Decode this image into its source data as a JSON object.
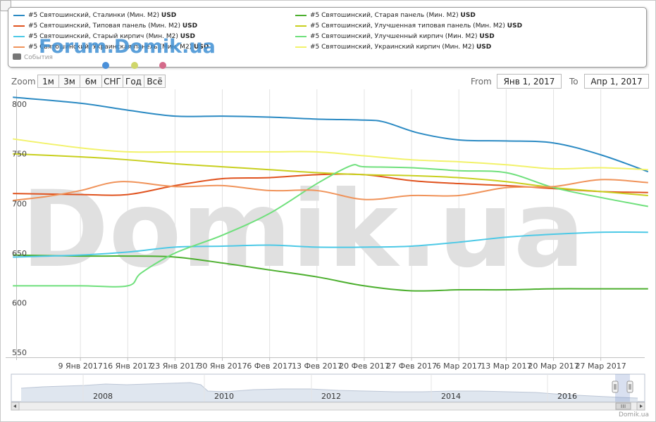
{
  "legend": {
    "items": [
      {
        "label": "#5 Святошинский, Сталинки (Мин. М2)",
        "currency": "USD",
        "color": "#2b8ac3"
      },
      {
        "label": "#5 Святошинский, Старая панель (Мин. М2)",
        "currency": "USD",
        "color": "#4caf2e"
      },
      {
        "label": "#5 Святошинский, Типовая панель (Мин. М2)",
        "currency": "USD",
        "color": "#e0531f"
      },
      {
        "label": "#5 Святошинский, Улучшенная типовая панель (Мин. М2)",
        "currency": "USD",
        "color": "#c8cf1e"
      },
      {
        "label": "#5 Святошинский, Старый кирпич (Мин. М2)",
        "currency": "USD",
        "color": "#4dc9e6"
      },
      {
        "label": "#5 Святошинский, Улучшенный кирпич (Мин. М2)",
        "currency": "USD",
        "color": "#6fe07c"
      },
      {
        "label": "#5 Святошинский, Украинская панель (Мин. М2)",
        "currency": "USD",
        "color": "#f0935a"
      },
      {
        "label": "#5 Святошинский, Украинский кирпич (Мин. М2)",
        "currency": "USD",
        "color": "#f2f26a"
      }
    ],
    "events_label": "События"
  },
  "watermark": {
    "forum_logo": "Forum.Domik.ua",
    "big": "Domik.ua",
    "dot_colors": [
      "#4a90d9",
      "#cfd66a",
      "#d46a8a"
    ]
  },
  "range_selector": {
    "zoom_label": "Zoom",
    "buttons": [
      "1м",
      "3м",
      "6м",
      "СНГ",
      "Год",
      "Всё"
    ],
    "from_label": "From",
    "from_value": "Янв 1, 2017",
    "to_label": "To",
    "to_value": "Апр 1, 2017"
  },
  "navigator": {
    "year_labels": [
      "2008",
      "2010",
      "2012",
      "2014",
      "2016"
    ]
  },
  "credits": "Domik.ua",
  "chart_data": {
    "type": "line",
    "title": "",
    "xlabel": "",
    "ylabel": "",
    "x_tick_labels": [
      "9 Янв 2017",
      "16 Янв 2017",
      "23 Янв 2017",
      "30 Янв 2017",
      "6 Фев 2017",
      "13 Фев 2017",
      "20 Фев 2017",
      "27 Фев 2017",
      "6 Мар 2017",
      "13 Мар 2017",
      "20 Мар 2017",
      "27 Мар 2017"
    ],
    "x_tick_days": [
      8,
      15,
      22,
      29,
      36,
      43,
      50,
      57,
      64,
      71,
      78,
      85
    ],
    "x_range_days": [
      -1.5,
      91.5
    ],
    "y_ticks": [
      550,
      600,
      650,
      700,
      750,
      800
    ],
    "ylim": [
      545,
      815
    ],
    "grid": "vertical",
    "series": [
      {
        "name": "#5 Святошинский, Сталинки (Мин. М2)",
        "color": "#2b8ac3",
        "x": [
          -2,
          8,
          15,
          22,
          29,
          36,
          43,
          50,
          53,
          58,
          64,
          71,
          78,
          85,
          92
        ],
        "y": [
          807,
          801,
          794,
          788,
          788,
          787,
          785,
          784,
          782,
          771,
          764,
          763,
          761,
          749,
          732
        ]
      },
      {
        "name": "#5 Святошинский, Старая панель (Мин. М2)",
        "color": "#4caf2e",
        "x": [
          -2,
          8,
          15,
          22,
          29,
          36,
          43,
          50,
          57,
          64,
          71,
          78,
          85,
          92
        ],
        "y": [
          648,
          647,
          647,
          646,
          640,
          633,
          626,
          617,
          612,
          613,
          613,
          614,
          614,
          614
        ]
      },
      {
        "name": "#5 Святошинский, Типовая панель (Мин. М2)",
        "color": "#e0531f",
        "x": [
          -2,
          8,
          15,
          22,
          29,
          36,
          43,
          50,
          57,
          64,
          71,
          78,
          85,
          92
        ],
        "y": [
          710,
          709,
          709,
          718,
          725,
          726,
          729,
          729,
          723,
          720,
          718,
          715,
          712,
          711
        ]
      },
      {
        "name": "#5 Святошинский, Улучшенная типовая панель (Мин. М2)",
        "color": "#c8cf1e",
        "x": [
          -2,
          8,
          15,
          22,
          29,
          36,
          43,
          50,
          57,
          64,
          71,
          78,
          85,
          92
        ],
        "y": [
          750,
          747,
          744,
          740,
          737,
          734,
          731,
          729,
          728,
          726,
          722,
          716,
          712,
          708
        ]
      },
      {
        "name": "#5 Святошинский, Старый кирпич (Мин. М2)",
        "color": "#4dc9e6",
        "x": [
          -2,
          8,
          15,
          22,
          29,
          36,
          43,
          50,
          57,
          64,
          71,
          78,
          85,
          92
        ],
        "y": [
          646,
          648,
          651,
          656,
          657,
          658,
          656,
          656,
          657,
          661,
          666,
          669,
          671,
          671
        ]
      },
      {
        "name": "#5 Святошинский, Улучшенный кирпич (Мин. М2)",
        "color": "#6fe07c",
        "x": [
          -2,
          8,
          15,
          17,
          22,
          29,
          36,
          43,
          48,
          50,
          57,
          64,
          71,
          78,
          85,
          92
        ],
        "y": [
          617,
          617,
          617,
          630,
          650,
          668,
          690,
          720,
          738,
          737,
          736,
          733,
          731,
          716,
          706,
          697
        ]
      },
      {
        "name": "#5 Святошинский, Украинская панель (Мин. М2)",
        "color": "#f0935a",
        "x": [
          -2,
          3,
          8,
          14,
          22,
          29,
          36,
          43,
          50,
          57,
          64,
          71,
          78,
          85,
          92
        ],
        "y": [
          703,
          707,
          713,
          722,
          717,
          718,
          713,
          713,
          704,
          708,
          708,
          716,
          717,
          724,
          721
        ]
      },
      {
        "name": "#5 Святошинский, Украинский кирпич (Мин. М2)",
        "color": "#f2f26a",
        "x": [
          -2,
          8,
          15,
          22,
          29,
          36,
          43,
          50,
          57,
          64,
          71,
          78,
          85,
          92
        ],
        "y": [
          765,
          756,
          752,
          752,
          752,
          752,
          752,
          748,
          744,
          742,
          739,
          735,
          736,
          734
        ]
      }
    ]
  }
}
